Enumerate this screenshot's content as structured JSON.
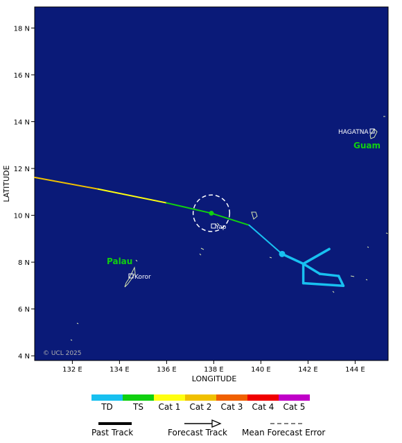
{
  "map": {
    "ocean_color": "#0a1a78",
    "land_outline_color": "#d8e6b0",
    "xlabel": "LONGITUDE",
    "ylabel": "LATITUDE",
    "lon_ticks": [
      "132 E",
      "134 E",
      "136 E",
      "138 E",
      "140 E",
      "142 E",
      "144 E"
    ],
    "lat_ticks": [
      "18 N",
      "16 N",
      "14 N",
      "12 N",
      "10 N",
      "8 N",
      "6 N",
      "4 N"
    ],
    "copyright": "© UCL 2025"
  },
  "places": {
    "hagatna": "HAGATNA",
    "guam": "Guam",
    "palau": "Palau",
    "koror": "Koror",
    "yap": "Yap"
  },
  "chart_data": {
    "type": "map-track",
    "xlim_lon": [
      130.4,
      145.4
    ],
    "ylim_lat": [
      3.8,
      18.9
    ],
    "past_track": [
      {
        "lon": 130.4,
        "lat": 11.62,
        "category": "Cat 2"
      },
      {
        "lon": 133.1,
        "lat": 11.12,
        "category": "Cat 1"
      },
      {
        "lon": 136.0,
        "lat": 10.53,
        "category": "TS"
      },
      {
        "lon": 137.9,
        "lat": 10.09,
        "category": "TS"
      },
      {
        "lon": 139.5,
        "lat": 9.58,
        "category": "TD"
      },
      {
        "lon": 140.9,
        "lat": 8.35,
        "category": "TD"
      }
    ],
    "forecast_track": [
      {
        "lon": 140.9,
        "lat": 8.35
      },
      {
        "lon": 141.8,
        "lat": 7.93
      },
      {
        "lon": 142.9,
        "lat": 8.56
      },
      {
        "lon": 141.8,
        "lat": 7.93
      },
      {
        "lon": 142.5,
        "lat": 7.5
      },
      {
        "lon": 143.3,
        "lat": 7.41
      },
      {
        "lon": 143.5,
        "lat": 6.99
      },
      {
        "lon": 141.8,
        "lat": 7.1
      },
      {
        "lon": 141.8,
        "lat": 7.93
      }
    ],
    "current_position": {
      "lon": 137.9,
      "lat": 10.09
    },
    "forecast_marker": {
      "lon": 140.9,
      "lat": 8.35
    },
    "mean_forecast_error_radius_deg": 0.78
  },
  "legend": {
    "categories": [
      {
        "label": "TD",
        "color": "#18c0f0"
      },
      {
        "label": "TS",
        "color": "#10d010"
      },
      {
        "label": "Cat 1",
        "color": "#ffff10"
      },
      {
        "label": "Cat 2",
        "color": "#f0c000"
      },
      {
        "label": "Cat 3",
        "color": "#f06000"
      },
      {
        "label": "Cat 4",
        "color": "#f00000"
      },
      {
        "label": "Cat 5",
        "color": "#c000c8"
      }
    ],
    "past_track_label": "Past Track",
    "forecast_track_label": "Forecast Track",
    "mean_error_label": "Mean Forecast Error"
  }
}
